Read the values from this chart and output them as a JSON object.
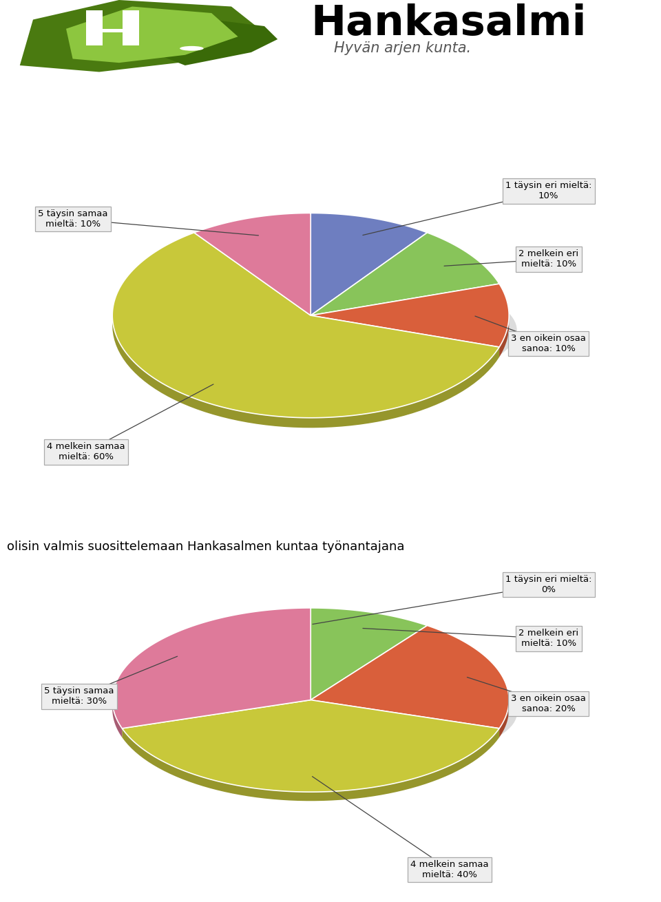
{
  "logo_text_main": "Hankasalmi",
  "logo_text_sub": "Hyvän arjen kunta.",
  "chart2_title": "olisin valmis suosittelemaan Hankasalmen kuntaa työnantajana",
  "chart1_labels": [
    "1 täysin eri mieltä:\n10%",
    "2 melkein eri\nmieltä: 10%",
    "3 en oikein osaa\nsanoa: 10%",
    "4 melkein samaa\nmieltä: 60%",
    "5 täysin samaa\nmieltä: 10%"
  ],
  "chart1_values": [
    10,
    10,
    10,
    60,
    10
  ],
  "chart1_colors": [
    "#6e7ec0",
    "#88c45a",
    "#d95f3b",
    "#c8c83a",
    "#de7a9a"
  ],
  "chart2_labels": [
    "1 täysin eri mieltä:\n0%",
    "2 melkein eri\nmieltä: 10%",
    "3 en oikein osaa\nsanoa: 20%",
    "4 melkein samaa\nmieltä: 40%",
    "5 täysin samaa\nmieltä: 30%"
  ],
  "chart2_values": [
    0,
    10,
    20,
    40,
    30
  ],
  "chart2_colors": [
    "#6e7ec0",
    "#88c45a",
    "#d95f3b",
    "#c8c83a",
    "#de7a9a"
  ],
  "label_fontsize": 9.5,
  "title_fontsize": 13,
  "box_facecolor": "#eeeeee",
  "box_edgecolor": "#aaaaaa"
}
